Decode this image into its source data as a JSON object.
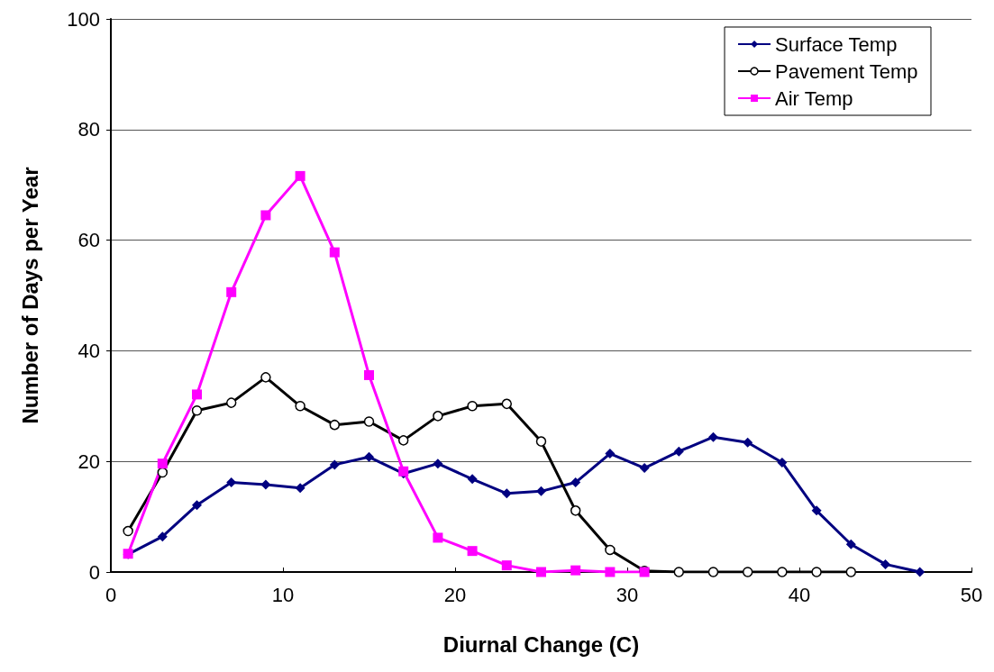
{
  "chart_data": {
    "type": "line",
    "xlabel": "Diurnal Change (C)",
    "ylabel": "Number of Days per Year",
    "xlim": [
      0,
      50
    ],
    "xticks": [
      0,
      10,
      20,
      30,
      40,
      50
    ],
    "ylim": [
      0,
      100
    ],
    "yticks": [
      0,
      20,
      40,
      60,
      80,
      100
    ],
    "grid": "y",
    "legend": "top right",
    "series": [
      {
        "name": "Surface Temp",
        "color": "#000080",
        "marker": "diamond",
        "x": [
          1,
          3,
          5,
          7,
          9,
          11,
          13,
          15,
          17,
          19,
          21,
          23,
          25,
          27,
          29,
          31,
          33,
          35,
          37,
          39,
          41,
          43,
          45,
          47
        ],
        "values": [
          3.2,
          6.4,
          12.1,
          16.2,
          15.8,
          15.2,
          19.4,
          20.8,
          17.8,
          19.6,
          16.8,
          14.2,
          14.6,
          16.2,
          21.4,
          18.8,
          21.8,
          24.4,
          23.4,
          19.8,
          11.1,
          5.0,
          1.4,
          0
        ]
      },
      {
        "name": "Pavement Temp",
        "color": "#000000",
        "marker": "circle",
        "x": [
          1,
          3,
          5,
          7,
          9,
          11,
          13,
          15,
          17,
          19,
          21,
          23,
          25,
          27,
          29,
          31,
          33,
          35,
          37,
          39,
          41,
          43
        ],
        "values": [
          7.4,
          18,
          29.2,
          30.6,
          35.2,
          30,
          26.6,
          27.2,
          23.8,
          28.2,
          30,
          30.4,
          23.6,
          11.1,
          4.0,
          0.2,
          0,
          0,
          0,
          0,
          0,
          0
        ]
      },
      {
        "name": "Air Temp",
        "color": "#ff00ff",
        "marker": "square",
        "x": [
          1,
          3,
          5,
          7,
          9,
          11,
          13,
          15,
          17,
          19,
          21,
          23,
          25,
          27,
          29,
          31
        ],
        "values": [
          3.3,
          19.6,
          32.1,
          50.6,
          64.5,
          71.6,
          57.8,
          35.6,
          18.2,
          6.2,
          3.8,
          1.2,
          0,
          0.3,
          0,
          0
        ]
      }
    ]
  }
}
